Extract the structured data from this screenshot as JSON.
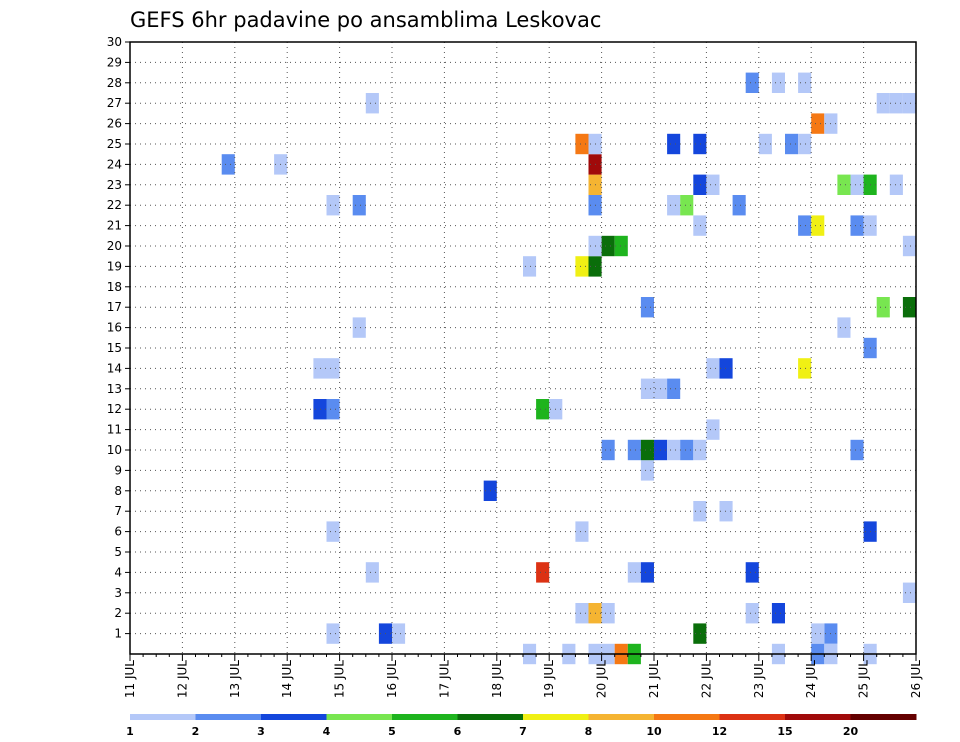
{
  "chart_data": {
    "type": "heatmap",
    "title": "GEFS 6hr padavine po ansamblima Leskovac",
    "x_tick_labels": [
      "11 JUL",
      "12 JUL",
      "13 JUL",
      "14 JUL",
      "15 JUL",
      "16 JUL",
      "17 JUL",
      "18 JUL",
      "19 JUL",
      "20 JUL",
      "21 JUL",
      "22 JUL",
      "23 JUL",
      "24 JUL",
      "25 JUL",
      "26 JUL"
    ],
    "y_tick_labels": [
      "1",
      "2",
      "3",
      "4",
      "5",
      "6",
      "7",
      "8",
      "9",
      "10",
      "11",
      "12",
      "13",
      "14",
      "15",
      "16",
      "17",
      "18",
      "19",
      "20",
      "21",
      "22",
      "23",
      "24",
      "25",
      "26",
      "27",
      "28",
      "29",
      "30"
    ],
    "x_range": [
      0,
      60
    ],
    "y_range": [
      0,
      30
    ],
    "grid": true,
    "colorbar": {
      "labels": [
        "1",
        "2",
        "3",
        "4",
        "5",
        "6",
        "7",
        "8",
        "10",
        "12",
        "15",
        "20"
      ],
      "colors": [
        "#b4c8f8",
        "#5a8cf0",
        "#1446dc",
        "#78e650",
        "#1eb41e",
        "#0a6e0a",
        "#f0f014",
        "#f5b432",
        "#f57814",
        "#dc3214",
        "#a00a0a",
        "#640000"
      ]
    },
    "values": [
      {
        "t": 15.5,
        "m": 1,
        "c": 0
      },
      {
        "t": 19.5,
        "m": 1,
        "c": 2
      },
      {
        "t": 20.5,
        "m": 1,
        "c": 0
      },
      {
        "t": 43.5,
        "m": 1,
        "c": 5
      },
      {
        "t": 53.5,
        "m": 1,
        "c": 1
      },
      {
        "t": 52.5,
        "m": 1,
        "c": 0
      },
      {
        "t": 34.5,
        "m": 2,
        "c": 0
      },
      {
        "t": 35.5,
        "m": 2,
        "c": 7
      },
      {
        "t": 36.5,
        "m": 2,
        "c": 0
      },
      {
        "t": 47.5,
        "m": 2,
        "c": 0
      },
      {
        "t": 49.5,
        "m": 2,
        "c": 2
      },
      {
        "t": 59.5,
        "m": 3,
        "c": 0
      },
      {
        "t": 18.5,
        "m": 4,
        "c": 0
      },
      {
        "t": 31.5,
        "m": 4,
        "c": 9
      },
      {
        "t": 38.5,
        "m": 4,
        "c": 0
      },
      {
        "t": 39.5,
        "m": 4,
        "c": 2
      },
      {
        "t": 47.5,
        "m": 4,
        "c": 2
      },
      {
        "t": 15.5,
        "m": 6,
        "c": 0
      },
      {
        "t": 34.5,
        "m": 6,
        "c": 0
      },
      {
        "t": 56.5,
        "m": 6,
        "c": 2
      },
      {
        "t": 43.5,
        "m": 7,
        "c": 0
      },
      {
        "t": 45.5,
        "m": 7,
        "c": 0
      },
      {
        "t": 27.5,
        "m": 8,
        "c": 2
      },
      {
        "t": 39.5,
        "m": 9,
        "c": 0
      },
      {
        "t": 36.5,
        "m": 10,
        "c": 1
      },
      {
        "t": 38.5,
        "m": 10,
        "c": 1
      },
      {
        "t": 39.5,
        "m": 10,
        "c": 5
      },
      {
        "t": 40.5,
        "m": 10,
        "c": 2
      },
      {
        "t": 41.5,
        "m": 10,
        "c": 0
      },
      {
        "t": 42.5,
        "m": 10,
        "c": 1
      },
      {
        "t": 43.5,
        "m": 10,
        "c": 0
      },
      {
        "t": 55.5,
        "m": 10,
        "c": 1
      },
      {
        "t": 44.5,
        "m": 11,
        "c": 0
      },
      {
        "t": 14.5,
        "m": 12,
        "c": 2
      },
      {
        "t": 15.5,
        "m": 12,
        "c": 1
      },
      {
        "t": 31.5,
        "m": 12,
        "c": 4
      },
      {
        "t": 32.5,
        "m": 12,
        "c": 0
      },
      {
        "t": 39.5,
        "m": 13,
        "c": 0
      },
      {
        "t": 40.5,
        "m": 13,
        "c": 0
      },
      {
        "t": 41.5,
        "m": 13,
        "c": 1
      },
      {
        "t": 14.5,
        "m": 14,
        "c": 0
      },
      {
        "t": 15.5,
        "m": 14,
        "c": 0
      },
      {
        "t": 44.5,
        "m": 14,
        "c": 0
      },
      {
        "t": 45.5,
        "m": 14,
        "c": 2
      },
      {
        "t": 51.5,
        "m": 14,
        "c": 6
      },
      {
        "t": 56.5,
        "m": 15,
        "c": 1
      },
      {
        "t": 17.5,
        "m": 16,
        "c": 0
      },
      {
        "t": 54.5,
        "m": 16,
        "c": 0
      },
      {
        "t": 39.5,
        "m": 17,
        "c": 1
      },
      {
        "t": 57.5,
        "m": 17,
        "c": 3
      },
      {
        "t": 59.5,
        "m": 17,
        "c": 5
      },
      {
        "t": 30.5,
        "m": 19,
        "c": 0
      },
      {
        "t": 34.5,
        "m": 19,
        "c": 6
      },
      {
        "t": 35.5,
        "m": 19,
        "c": 5
      },
      {
        "t": 35.5,
        "m": 20,
        "c": 0
      },
      {
        "t": 36.5,
        "m": 20,
        "c": 5
      },
      {
        "t": 37.5,
        "m": 20,
        "c": 4
      },
      {
        "t": 59.5,
        "m": 20,
        "c": 0
      },
      {
        "t": 43.5,
        "m": 21,
        "c": 0
      },
      {
        "t": 51.5,
        "m": 21,
        "c": 1
      },
      {
        "t": 52.5,
        "m": 21,
        "c": 6
      },
      {
        "t": 55.5,
        "m": 21,
        "c": 1
      },
      {
        "t": 56.5,
        "m": 21,
        "c": 0
      },
      {
        "t": 15.5,
        "m": 22,
        "c": 0
      },
      {
        "t": 17.5,
        "m": 22,
        "c": 1
      },
      {
        "t": 35.5,
        "m": 22,
        "c": 1
      },
      {
        "t": 41.5,
        "m": 22,
        "c": 0
      },
      {
        "t": 42.5,
        "m": 22,
        "c": 3
      },
      {
        "t": 46.5,
        "m": 22,
        "c": 1
      },
      {
        "t": 35.5,
        "m": 23,
        "c": 7
      },
      {
        "t": 43.5,
        "m": 23,
        "c": 2
      },
      {
        "t": 44.5,
        "m": 23,
        "c": 0
      },
      {
        "t": 54.5,
        "m": 23,
        "c": 3
      },
      {
        "t": 55.5,
        "m": 23,
        "c": 0
      },
      {
        "t": 56.5,
        "m": 23,
        "c": 4
      },
      {
        "t": 58.5,
        "m": 23,
        "c": 0
      },
      {
        "t": 7.5,
        "m": 24,
        "c": 1
      },
      {
        "t": 11.5,
        "m": 24,
        "c": 0
      },
      {
        "t": 35.5,
        "m": 24,
        "c": 10
      },
      {
        "t": 34.5,
        "m": 25,
        "c": 8
      },
      {
        "t": 35.5,
        "m": 25,
        "c": 0
      },
      {
        "t": 41.5,
        "m": 25,
        "c": 2
      },
      {
        "t": 43.5,
        "m": 25,
        "c": 2
      },
      {
        "t": 48.5,
        "m": 25,
        "c": 0
      },
      {
        "t": 50.5,
        "m": 25,
        "c": 1
      },
      {
        "t": 51.5,
        "m": 25,
        "c": 0
      },
      {
        "t": 52.5,
        "m": 26,
        "c": 8
      },
      {
        "t": 53.5,
        "m": 26,
        "c": 0
      },
      {
        "t": 18.5,
        "m": 27,
        "c": 0
      },
      {
        "t": 57.5,
        "m": 27,
        "c": 0
      },
      {
        "t": 58.5,
        "m": 27,
        "c": 0
      },
      {
        "t": 59.5,
        "m": 27,
        "c": 0
      },
      {
        "t": 47.5,
        "m": 28,
        "c": 1
      },
      {
        "t": 49.5,
        "m": 28,
        "c": 0
      },
      {
        "t": 51.5,
        "m": 28,
        "c": 0
      },
      {
        "t": 30.5,
        "m": 0,
        "c": 0
      },
      {
        "t": 33.5,
        "m": 0,
        "c": 0
      },
      {
        "t": 35.5,
        "m": 0,
        "c": 0
      },
      {
        "t": 36.5,
        "m": 0,
        "c": 0
      },
      {
        "t": 37.5,
        "m": 0,
        "c": 8
      },
      {
        "t": 38.5,
        "m": 0,
        "c": 4
      },
      {
        "t": 49.5,
        "m": 0,
        "c": 0
      },
      {
        "t": 52.5,
        "m": 0,
        "c": 1
      },
      {
        "t": 53.5,
        "m": 0,
        "c": 0
      },
      {
        "t": 56.5,
        "m": 0,
        "c": 0
      }
    ]
  }
}
